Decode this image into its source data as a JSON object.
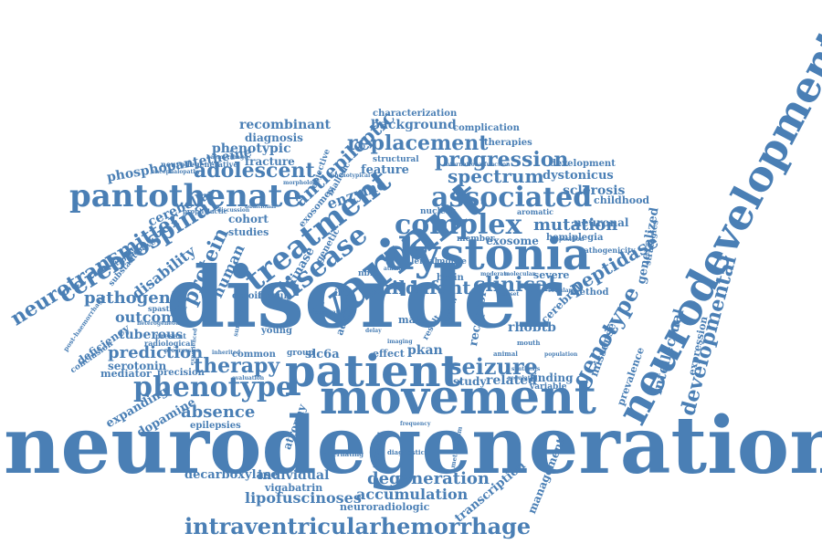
{
  "color": "#4a7fb5",
  "words": [
    "neurodegeneration",
    "disorder",
    "movement",
    "patient",
    "variant",
    "dystonia",
    "neurodevelopmental",
    "pantothenate",
    "treatment",
    "disease",
    "associated",
    "complex",
    "intraventricularhemorrhage",
    "phenotype",
    "seizure",
    "therapy",
    "developmental",
    "cerebrospinal",
    "neurotransmitter",
    "progression",
    "replacement",
    "spectrum",
    "genotype",
    "peptidase",
    "adolescent",
    "clinical",
    "child",
    "infant",
    "absence",
    "protein",
    "mutation",
    "degeneration",
    "accumulation",
    "lipofuscinoses",
    "decarboxylase",
    "individual",
    "pathogenic",
    "prediction",
    "outcome",
    "disability",
    "tuberous",
    "phenotypic",
    "fracture",
    "diagnosis",
    "recombinant",
    "antiepileptic",
    "background",
    "complication",
    "characterization",
    "therapies",
    "development",
    "phosphopantetheine",
    "neurodegenerative",
    "feature",
    "structural",
    "dystonicus",
    "sclerosis",
    "exosome",
    "hemiplegia",
    "childhood",
    "neuronal",
    "generalized",
    "intellectual",
    "expression",
    "prevalence",
    "missense",
    "management",
    "transcription",
    "neuroradiologic",
    "vigabatrin",
    "expanding",
    "dopamine",
    "epilepsies",
    "serotonin",
    "mediator",
    "precision",
    "deficiency",
    "conclusion",
    "retrospective",
    "substantia",
    "cerebellar",
    "cohort",
    "studies",
    "human",
    "kinase",
    "genetic",
    "exosomes",
    "enzyme",
    "biallelic",
    "objective",
    "atrophy",
    "slc6a",
    "group",
    "effect",
    "pkan",
    "study",
    "related",
    "finding",
    "variable",
    "rhobtb",
    "receptor",
    "cerebral",
    "severe",
    "male",
    "adult",
    "mouse",
    "lental",
    "nuclear",
    "member",
    "aromatic",
    "brain",
    "iron",
    "ceroid",
    "femur",
    "young",
    "common",
    "radiological",
    "spasticity",
    "method",
    "strategies",
    "pathogenicity",
    "heterogeneous",
    "encephalopathy",
    "prophylactic",
    "additional",
    "discussion",
    "present",
    "progressive",
    "animal",
    "population",
    "review",
    "result",
    "evaluation",
    "nbia",
    "alternating",
    "diagnostic",
    "suggested",
    "metabolism",
    "inherited",
    "experienced",
    "post-haemorrhagic",
    "morphology",
    "haemorrhage",
    "synthesis",
    "frequency",
    "moderate",
    "molecular",
    "deposition",
    "international",
    "function",
    "surgery",
    "mouth",
    "ataxia",
    "delay",
    "neuropathy",
    "onset",
    "imaging",
    "cellular",
    "phenotypical",
    "regulated"
  ]
}
